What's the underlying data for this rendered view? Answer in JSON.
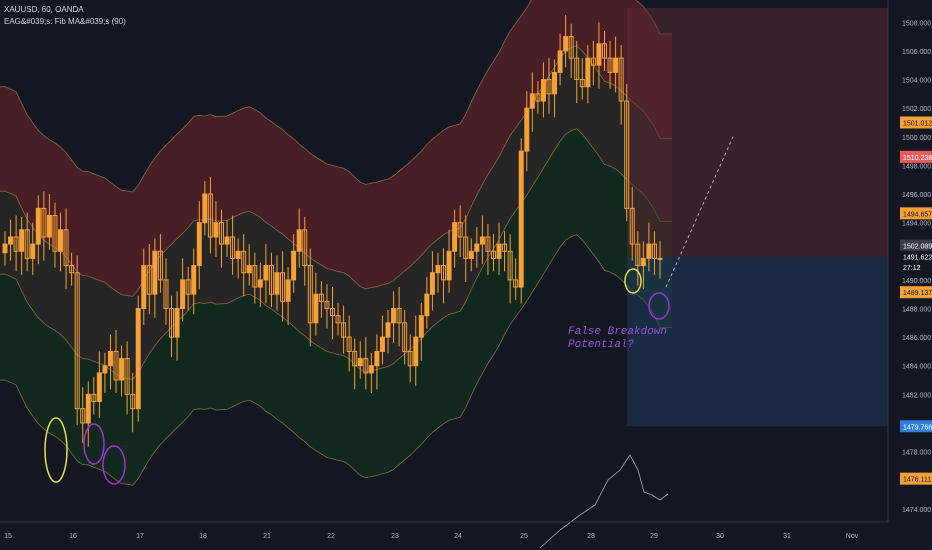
{
  "header": {
    "symbol_line": "XAUUSD, 60, OANDA",
    "indicator_line": "EAG&#039;s: Fib MA&#039;s (90)"
  },
  "annotation": {
    "line1": "False Breakdown",
    "line2": "Potential?"
  },
  "colors": {
    "background": "#131722",
    "candle": "#f7a035",
    "upper_band_fill": "#4a1f27",
    "mid_band_fill": "#262626",
    "lower_band_fill": "#10291e",
    "band_line": "#8a6a3b",
    "short_position_stop": "#5a2a33",
    "short_position_target": "#1f3a5e",
    "circle_yellow": "#e8e04a",
    "circle_purple": "#a52fd0",
    "price_tag_orange": "#f7a035",
    "price_tag_red": "#f05a5a",
    "price_tag_blue": "#2f7fe0",
    "price_tag_gray": "#3a3e4a"
  },
  "chart_data": {
    "type": "candlestick",
    "symbol": "XAUUSD",
    "timeframe": "60",
    "ylim": [
      1473.5,
      1509.0
    ],
    "y_ticks": [
      "1508.000",
      "1506.000",
      "1504.000",
      "1502.000",
      "1500.000",
      "1498.000",
      "1496.000",
      "1494.000",
      "1492.000",
      "1490.000",
      "1488.000",
      "1486.000",
      "1484.000",
      "1482.000",
      "1480.000",
      "1478.000",
      "1476.000",
      "1474.000"
    ],
    "x_ticks": [
      "15",
      "16",
      "17",
      "18",
      "21",
      "22",
      "23",
      "24",
      "25",
      "28",
      "29",
      "30",
      "31",
      "Nov"
    ],
    "price_tags": [
      {
        "label": "1501.012",
        "value": 1501.0,
        "kind": "orange"
      },
      {
        "label": "1510.238",
        "value": 1498.6,
        "kind": "red"
      },
      {
        "label": "1494.657",
        "value": 1494.65,
        "kind": "orange"
      },
      {
        "label": "1502.089",
        "value": 1492.4,
        "kind": "gray"
      },
      {
        "label": "1491.622",
        "value": 1491.62,
        "kind": "dark"
      },
      {
        "label": "27:12",
        "value": 1490.9,
        "kind": "dark"
      },
      {
        "label": "1489.137",
        "value": 1489.14,
        "kind": "orange"
      },
      {
        "label": "1479.768",
        "value": 1479.77,
        "kind": "blue"
      },
      {
        "label": "1476.111",
        "value": 1476.11,
        "kind": "orange"
      }
    ],
    "candles_close": [
      1492.5,
      1493.0,
      1492.0,
      1493.5,
      1491.5,
      1492.5,
      1495.0,
      1493.0,
      1494.5,
      1492.0,
      1493.5,
      1491.0,
      1490.5,
      1481.0,
      1480.0,
      1482.0,
      1481.5,
      1483.5,
      1484.0,
      1485.0,
      1483.0,
      1484.5,
      1482.0,
      1481.0,
      1488.0,
      1491.0,
      1489.0,
      1492.0,
      1490.0,
      1488.0,
      1486.0,
      1488.0,
      1490.0,
      1489.0,
      1491.0,
      1494.0,
      1496.0,
      1493.0,
      1494.0,
      1492.5,
      1493.0,
      1491.5,
      1492.0,
      1490.5,
      1491.0,
      1489.5,
      1490.0,
      1491.0,
      1489.0,
      1490.5,
      1488.5,
      1490.0,
      1492.0,
      1493.5,
      1491.0,
      1487.0,
      1489.0,
      1488.5,
      1488.0,
      1487.5,
      1487.0,
      1486.0,
      1485.0,
      1484.0,
      1484.5,
      1483.5,
      1484.0,
      1485.0,
      1486.0,
      1487.0,
      1488.0,
      1487.0,
      1485.0,
      1484.0,
      1486.0,
      1487.5,
      1489.0,
      1490.5,
      1491.0,
      1490.0,
      1492.0,
      1494.0,
      1493.0,
      1491.5,
      1492.0,
      1492.5,
      1493.0,
      1492.0,
      1491.5,
      1492.5,
      1492.0,
      1490.0,
      1489.5,
      1499.0,
      1502.0,
      1503.0,
      1502.5,
      1504.0,
      1503.0,
      1504.5,
      1506.0,
      1507.0,
      1505.5,
      1504.0,
      1503.5,
      1505.5,
      1505.0,
      1506.5,
      1505.5,
      1504.5,
      1505.5,
      1502.5,
      1495.0,
      1492.5,
      1491.0,
      1491.5,
      1492.5,
      1491.5,
      1491.5
    ],
    "overlay_series": [
      {
        "name": "Fib MA upper band"
      },
      {
        "name": "Fib MA middle band"
      },
      {
        "name": "Fib MA lower band"
      }
    ],
    "short_position": {
      "entry": 1491.6,
      "stop": 1509.0,
      "target": 1479.77
    },
    "projection": {
      "from": 1489.5,
      "to": 1500.0
    }
  }
}
